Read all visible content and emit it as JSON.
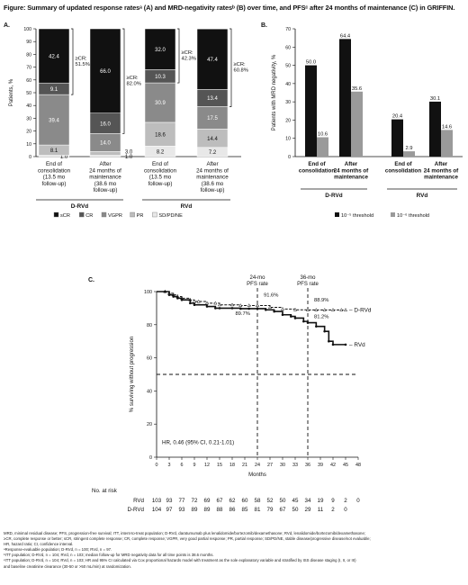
{
  "figure_title": "Figure: Summary of updated response ratesᵃ (A) and MRD-negativity ratesᵇ (B) over time, and PFSᶜ after 24 months of maintenance (C) in GRIFFIN.",
  "chart_data": [
    {
      "panel": "A.",
      "type": "bar",
      "stacked": true,
      "ylabel": "Patients, %",
      "ylim": [
        0,
        100
      ],
      "yticks": [
        0,
        10,
        20,
        30,
        40,
        50,
        60,
        70,
        80,
        90,
        100
      ],
      "groups": [
        "D-RVd",
        "RVd"
      ],
      "categories": [
        {
          "label": [
            "End of",
            "consolidation",
            "(13.5 mo",
            "follow-up)"
          ],
          "group": "D-RVd"
        },
        {
          "label": [
            "After",
            "24 months of",
            "maintenance",
            "(38.6 mo",
            "follow-up)"
          ],
          "group": "D-RVd"
        },
        {
          "label": [
            "End of",
            "consolidation",
            "(13.5 mo",
            "follow-up)"
          ],
          "group": "RVd"
        },
        {
          "label": [
            "After",
            "24 months of",
            "maintenance",
            "(38.6 mo",
            "follow-up)"
          ],
          "group": "RVd"
        }
      ],
      "series": [
        {
          "name": "sCR",
          "color": "#111111",
          "values": [
            42.4,
            66.0,
            32.0,
            47.4
          ]
        },
        {
          "name": "CR",
          "color": "#555555",
          "values": [
            9.1,
            16.0,
            10.3,
            13.4
          ]
        },
        {
          "name": "VGPR",
          "color": "#8a8a8a",
          "values": [
            39.4,
            14.0,
            30.9,
            17.5
          ]
        },
        {
          "name": "PR",
          "color": "#bdbdbd",
          "values": [
            8.1,
            3.0,
            18.6,
            14.4
          ]
        },
        {
          "name": "SD/PD/NE",
          "color": "#e8e8e8",
          "values": [
            1.0,
            1.0,
            8.2,
            7.2
          ]
        }
      ],
      "brackets": [
        {
          "bar": 0,
          "label": [
            "≥CR:",
            "51.5%"
          ]
        },
        {
          "bar": 1,
          "label": [
            "≥CR:",
            "82.0%"
          ]
        },
        {
          "bar": 2,
          "label": [
            "≥CR:",
            "42.3%"
          ]
        },
        {
          "bar": 3,
          "label": [
            "≥CR:",
            "60.8%"
          ]
        }
      ],
      "legend_position": "bottom"
    },
    {
      "panel": "B.",
      "type": "bar",
      "ylabel": "Patients with MRD negativity, %",
      "ylim": [
        0,
        70
      ],
      "yticks": [
        0,
        10,
        20,
        30,
        40,
        50,
        60,
        70
      ],
      "groups": [
        "D-RVd",
        "RVd"
      ],
      "categories": [
        {
          "label": [
            "End of",
            "consolidation"
          ],
          "group": "D-RVd"
        },
        {
          "label": [
            "After",
            "24 months of",
            "maintenance"
          ],
          "group": "D-RVd"
        },
        {
          "label": [
            "End of",
            "consolidation"
          ],
          "group": "RVd"
        },
        {
          "label": [
            "After",
            "24 months of",
            "maintenance"
          ],
          "group": "RVd"
        }
      ],
      "series": [
        {
          "name": "10⁻⁵ threshold",
          "color": "#111111",
          "values": [
            50.0,
            64.4,
            20.4,
            30.1
          ]
        },
        {
          "name": "10⁻⁶ threshold",
          "color": "#9a9a9a",
          "values": [
            10.6,
            35.6,
            2.9,
            14.6
          ]
        }
      ],
      "legend_position": "bottom"
    },
    {
      "panel": "C.",
      "type": "line",
      "xlabel": "Months",
      "ylabel": "% surviving without progression",
      "xlim": [
        0,
        48
      ],
      "ylim": [
        0,
        100
      ],
      "xticks": [
        0,
        3,
        6,
        9,
        12,
        15,
        18,
        21,
        24,
        27,
        30,
        33,
        36,
        39,
        42,
        45,
        48
      ],
      "yticks": [
        0,
        20,
        40,
        60,
        80,
        100
      ],
      "series": [
        {
          "name": "D-RVd",
          "color": "#111111",
          "dashed": true,
          "marker": "triangle",
          "x": [
            0,
            2,
            3,
            4,
            5,
            6,
            8,
            9,
            10,
            12,
            14,
            15,
            18,
            20,
            22,
            24,
            27,
            30,
            33,
            36,
            38,
            40,
            42,
            44,
            45
          ],
          "y": [
            100,
            100,
            99,
            98,
            97,
            96,
            95,
            94,
            94,
            93,
            93,
            92,
            92,
            91.6,
            91.6,
            91.6,
            90.5,
            89.5,
            89,
            88.9,
            88.9,
            88.9,
            88.9,
            88.9,
            88.9
          ]
        },
        {
          "name": "RVd",
          "color": "#111111",
          "dashed": false,
          "marker": "circle",
          "x": [
            0,
            2,
            3,
            4,
            5,
            6,
            8,
            9,
            12,
            14,
            15,
            18,
            20,
            22,
            24,
            26,
            28,
            30,
            32,
            33,
            35,
            36,
            38,
            40,
            41,
            42,
            45
          ],
          "y": [
            100,
            100,
            98,
            97,
            96,
            95,
            93,
            92,
            91,
            90,
            90,
            90,
            89.7,
            89.7,
            89.7,
            89,
            88,
            86,
            85,
            84,
            82,
            81.2,
            79,
            76,
            70,
            68,
            68
          ]
        }
      ],
      "reference_lines": [
        {
          "axis": "y",
          "value": 50,
          "style": "dashed"
        },
        {
          "axis": "x",
          "value": 24,
          "style": "dashed",
          "label": [
            "24-mo",
            "PFS rate"
          ]
        },
        {
          "axis": "x",
          "value": 36,
          "style": "dashed",
          "label": [
            "36-mo",
            "PFS rate"
          ]
        }
      ],
      "annotations": [
        {
          "text": "91.6%",
          "x": 25.5,
          "y": 97
        },
        {
          "text": "89.7%",
          "x": 20.5,
          "y": 86
        },
        {
          "text": "88.9%",
          "x": 37.5,
          "y": 94
        },
        {
          "text": "81.2%",
          "x": 37.5,
          "y": 84
        }
      ],
      "hr_text": "HR, 0.46 (95% CI, 0.21-1.01)",
      "at_risk": {
        "title": "No. at risk",
        "rows": [
          {
            "label": "RVd",
            "values": [
              103,
              93,
              77,
              72,
              69,
              67,
              62,
              60,
              58,
              52,
              50,
              45,
              34,
              19,
              9,
              2,
              0
            ]
          },
          {
            "label": "D-RVd",
            "values": [
              104,
              97,
              93,
              89,
              89,
              88,
              86,
              85,
              81,
              79,
              67,
              50,
              29,
              11,
              2,
              0,
              ""
            ]
          }
        ]
      }
    }
  ],
  "footnotes": [
    "MRD, minimal residual disease; PFS, progression-free survival; ITT, intent-to-treat population; D-RVd, daratumumab plus lenalidomide/bortezomib/dexamethasone; RVd, lenalidomide/bortezomib/dexamethasone;",
    "≥CR, complete response or better; sCR, stringent complete response; CR, complete response; VGPR, very good partial response; PR, partial response; SD/PD/NE, stable disease/progressive disease/not evaluable;",
    "HR, hazard ratio; CI, confidence interval.",
    "ᵃResponse-evaluable population; D-RVd, n = 100; RVd, n = 97.",
    "ᵇITT population; D-RVd, n = 104; RVd, n = 103; median follow-up for MRD negativity data for all time points is 38.6 months.",
    "ᶜITT population; D-RVd, n = 104; RVd, n = 103; HR and 95% CI calculated via Cox proportional hazards model with treatment as the sole explanatory variable and stratified by ISS disease staging (I, II, or III)",
    "and baseline creatinine clearance (30-50 or >50 mL/min) at randomization."
  ]
}
